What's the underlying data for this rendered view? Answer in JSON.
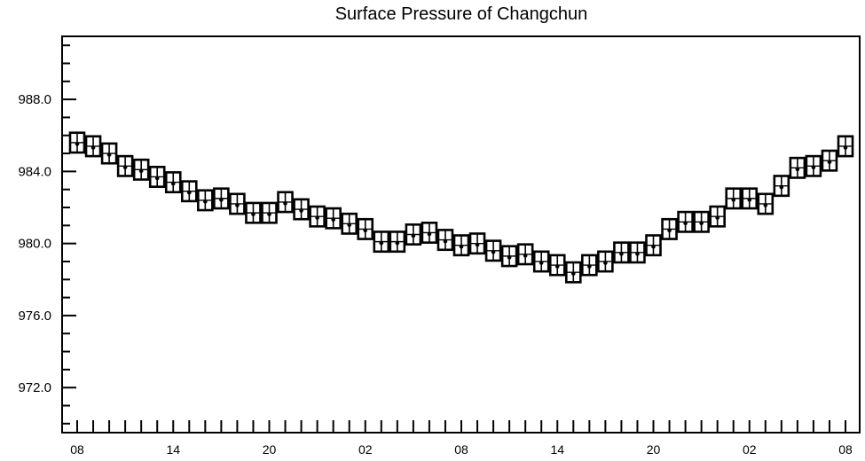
{
  "chart_data": {
    "type": "scatter",
    "title": "Surface Pressure of Changchun",
    "xlabel": "",
    "ylabel": "",
    "ylim": [
      969.5,
      991.5
    ],
    "yticks": [
      972.0,
      976.0,
      980.0,
      984.0,
      988.0
    ],
    "ytick_labels": [
      "972.0",
      "976.0",
      "980.0",
      "984.0",
      "988.0"
    ],
    "yminor_step": 1.0,
    "n_points": 49,
    "xtick_indices": [
      0,
      6,
      12,
      18,
      24,
      30,
      36,
      42,
      48
    ],
    "xtick_labels": [
      "08",
      "14",
      "20",
      "02",
      "08",
      "14",
      "20",
      "02",
      "08"
    ],
    "box_half_height": 0.55,
    "series": [
      {
        "values": [
          985.6,
          985.4,
          985.0,
          984.3,
          984.1,
          983.7,
          983.4,
          982.9,
          982.4,
          982.5,
          982.2,
          981.7,
          981.7,
          982.3,
          981.9,
          981.5,
          981.4,
          981.1,
          980.8,
          980.1,
          980.1,
          980.5,
          980.6,
          980.2,
          979.9,
          980.0,
          979.6,
          979.3,
          979.4,
          979.0,
          978.8,
          978.4,
          978.8,
          979.0,
          979.5,
          979.5,
          979.9,
          980.8,
          981.2,
          981.2,
          981.5,
          982.5,
          982.5,
          982.2,
          983.2,
          984.2,
          984.3,
          984.6,
          985.4
        ]
      }
    ],
    "grid": false,
    "legend": "none"
  }
}
